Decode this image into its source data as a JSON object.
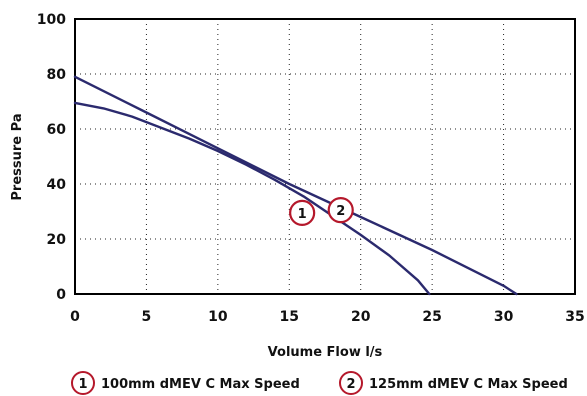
{
  "chart_data": {
    "type": "line",
    "title": "",
    "xlabel": "Volume Flow l/s",
    "ylabel": "Pressure Pa",
    "xlim": [
      0,
      35
    ],
    "ylim": [
      0,
      100
    ],
    "x_ticks": [
      "0",
      "5",
      "10",
      "15",
      "20",
      "25",
      "30",
      "35"
    ],
    "y_ticks": [
      "0",
      "20",
      "40",
      "60",
      "80",
      "100"
    ],
    "grid": true,
    "legend_position": "bottom",
    "series": [
      {
        "name": "100mm dMEV C Max Speed",
        "marker_label": "1",
        "color": "#2b2a6e",
        "x": [
          0,
          2,
          4,
          6,
          8,
          10,
          12,
          14,
          16,
          18,
          20,
          22,
          24,
          24.8
        ],
        "y": [
          69.5,
          67.5,
          64.5,
          60.5,
          56.5,
          52.0,
          47.0,
          41.5,
          35.5,
          28.5,
          21.5,
          14.0,
          5.0,
          0
        ]
      },
      {
        "name": "125mm dMEV C Max Speed",
        "marker_label": "2",
        "color": "#2b2a6e",
        "x": [
          0,
          5,
          10,
          15,
          20,
          25,
          30,
          30.9
        ],
        "y": [
          79,
          66,
          53,
          40,
          28,
          16,
          3,
          0
        ]
      }
    ],
    "callouts": [
      {
        "label": "1",
        "x": 15.9,
        "y": 29.5
      },
      {
        "label": "2",
        "x": 18.6,
        "y": 30.5
      }
    ],
    "badge_color": "#b5182b",
    "line_color": "#2b2a6e"
  }
}
